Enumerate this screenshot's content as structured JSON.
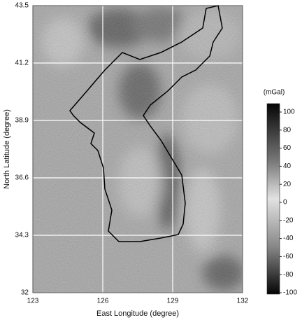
{
  "chart_data": {
    "type": "map",
    "xlabel": "East Longitude (degree)",
    "ylabel": "North Latitude (degree)",
    "xlim": [
      123,
      132
    ],
    "xticks": [
      123,
      126,
      129,
      132
    ],
    "ylim": [
      32,
      43.5
    ],
    "yticks": [
      32,
      34.3,
      36.6,
      38.9,
      41.2,
      43.5
    ],
    "grid": true,
    "colorbar": {
      "label": "(mGal)",
      "lim": [
        -100,
        100
      ],
      "ticks": [
        100,
        80,
        60,
        40,
        20,
        0,
        -20,
        -40,
        -60,
        -80,
        -100
      ]
    }
  }
}
